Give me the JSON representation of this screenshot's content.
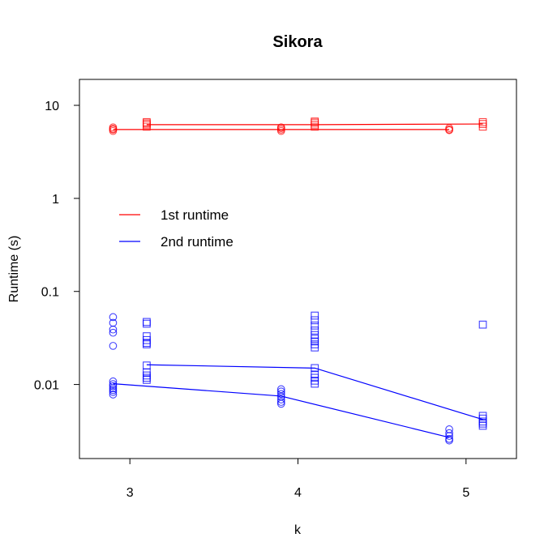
{
  "chart_data": {
    "type": "scatter",
    "title": "Sikora",
    "xlabel": "k",
    "ylabel": "Runtime (s)",
    "x_scale": "linear",
    "y_scale": "log",
    "xlim": [
      2.7,
      5.3
    ],
    "ylim": [
      0.0016,
      19
    ],
    "x_ticks": [
      3,
      4,
      5
    ],
    "y_ticks": [
      {
        "value": 10,
        "label": "10"
      },
      {
        "value": 1,
        "label": "1"
      },
      {
        "value": 0.1,
        "label": "0.1"
      },
      {
        "value": 0.01,
        "label": "0.01"
      }
    ],
    "grid": false,
    "legend_position": "left",
    "series": [
      {
        "name": "1st runtime",
        "color": "#ff0000",
        "marker": "circle",
        "line_x": [
          2.9,
          3.9,
          4.9
        ],
        "line_y": [
          5.5,
          5.5,
          5.5
        ],
        "points": [
          [
            2.9,
            5.3
          ],
          [
            2.9,
            5.5
          ],
          [
            2.9,
            5.6
          ],
          [
            2.9,
            5.8
          ],
          [
            3.9,
            5.3
          ],
          [
            3.9,
            5.5
          ],
          [
            3.9,
            5.7
          ],
          [
            3.9,
            5.8
          ],
          [
            4.9,
            5.4
          ],
          [
            4.9,
            5.5
          ],
          [
            4.9,
            5.7
          ]
        ]
      },
      {
        "name": "1st runtime",
        "color": "#ff0000",
        "marker": "square",
        "line_x": [
          3.1,
          4.1,
          5.1
        ],
        "line_y": [
          6.2,
          6.2,
          6.3
        ],
        "points": [
          [
            3.1,
            5.9
          ],
          [
            3.1,
            6.2
          ],
          [
            3.1,
            6.4
          ],
          [
            3.1,
            6.6
          ],
          [
            4.1,
            5.9
          ],
          [
            4.1,
            6.2
          ],
          [
            4.1,
            6.5
          ],
          [
            4.1,
            6.7
          ],
          [
            5.1,
            5.9
          ],
          [
            5.1,
            6.3
          ],
          [
            5.1,
            6.6
          ]
        ]
      },
      {
        "name": "2nd runtime",
        "color": "#0000ff",
        "marker": "circle",
        "line_x": [
          2.9,
          3.9,
          4.9
        ],
        "line_y": [
          0.0102,
          0.0075,
          0.0027
        ],
        "points": [
          [
            2.9,
            0.053
          ],
          [
            2.9,
            0.046
          ],
          [
            2.9,
            0.039
          ],
          [
            2.9,
            0.036
          ],
          [
            2.9,
            0.026
          ],
          [
            2.9,
            0.0108
          ],
          [
            2.9,
            0.0101
          ],
          [
            2.9,
            0.0096
          ],
          [
            2.9,
            0.0091
          ],
          [
            2.9,
            0.0087
          ],
          [
            2.9,
            0.0083
          ],
          [
            2.9,
            0.0078
          ],
          [
            3.9,
            0.0089
          ],
          [
            3.9,
            0.0084
          ],
          [
            3.9,
            0.0079
          ],
          [
            3.9,
            0.0074
          ],
          [
            3.9,
            0.0069
          ],
          [
            3.9,
            0.0065
          ],
          [
            3.9,
            0.0062
          ],
          [
            4.9,
            0.0033
          ],
          [
            4.9,
            0.003
          ],
          [
            4.9,
            0.0028
          ],
          [
            4.9,
            0.0026
          ],
          [
            4.9,
            0.0025
          ]
        ]
      },
      {
        "name": "2nd runtime",
        "color": "#0000ff",
        "marker": "square",
        "line_x": [
          3.1,
          4.1,
          5.1
        ],
        "line_y": [
          0.0163,
          0.015,
          0.0042
        ],
        "points": [
          [
            3.1,
            0.047
          ],
          [
            3.1,
            0.045
          ],
          [
            3.1,
            0.033
          ],
          [
            3.1,
            0.03
          ],
          [
            3.1,
            0.028
          ],
          [
            3.1,
            0.027
          ],
          [
            3.1,
            0.016
          ],
          [
            3.1,
            0.0135
          ],
          [
            3.1,
            0.0125
          ],
          [
            3.1,
            0.0118
          ],
          [
            3.1,
            0.0112
          ],
          [
            4.1,
            0.055
          ],
          [
            4.1,
            0.049
          ],
          [
            4.1,
            0.043
          ],
          [
            4.1,
            0.038
          ],
          [
            4.1,
            0.034
          ],
          [
            4.1,
            0.031
          ],
          [
            4.1,
            0.029
          ],
          [
            4.1,
            0.027
          ],
          [
            4.1,
            0.025
          ],
          [
            4.1,
            0.015
          ],
          [
            4.1,
            0.0128
          ],
          [
            4.1,
            0.0118
          ],
          [
            4.1,
            0.011
          ],
          [
            4.1,
            0.0102
          ],
          [
            5.1,
            0.044
          ],
          [
            5.1,
            0.0046
          ],
          [
            5.1,
            0.0043
          ],
          [
            5.1,
            0.004
          ],
          [
            5.1,
            0.0038
          ],
          [
            5.1,
            0.0036
          ]
        ]
      }
    ],
    "legend": [
      {
        "label": "1st runtime",
        "color": "#ff0000"
      },
      {
        "label": "2nd runtime",
        "color": "#0000ff"
      }
    ]
  }
}
